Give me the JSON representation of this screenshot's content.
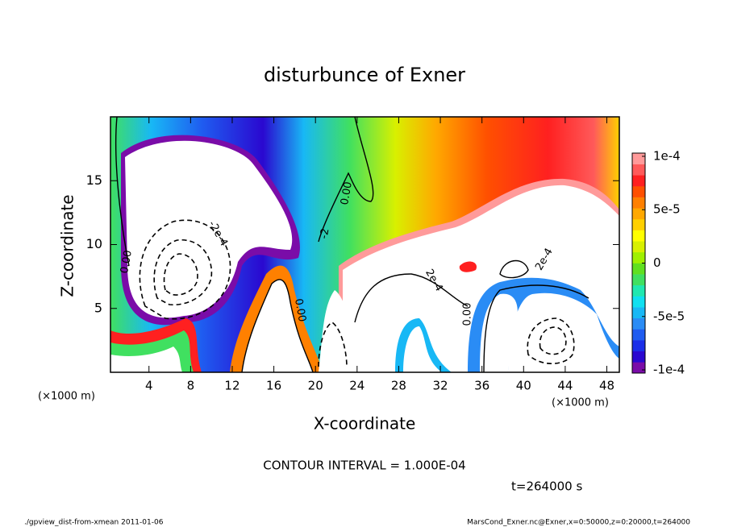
{
  "chart_data": {
    "type": "contour",
    "title": "disturbunce of Exner",
    "xlabel": "X-coordinate",
    "ylabel": "Z-coordinate",
    "x_unit": "(×1000 m)",
    "xlim": [
      0.3,
      49.2
    ],
    "xticks": [
      4,
      8,
      12,
      16,
      20,
      24,
      28,
      32,
      36,
      40,
      44,
      48
    ],
    "ylim": [
      0,
      20
    ],
    "yticks": [
      5,
      10,
      15
    ],
    "clim": [
      -0.000103,
      0.000103
    ],
    "cticks": [
      {
        "value": 0.0001,
        "label": "1e-4"
      },
      {
        "value": 5e-05,
        "label": "5e-5"
      },
      0,
      {
        "value": -5e-05,
        "label": "-5e-5"
      },
      {
        "value": -0.0001,
        "label": "-1e-4"
      }
    ],
    "colors": [
      "#7a0ca8",
      "#2a08d0",
      "#1a2ee8",
      "#1f5cf0",
      "#2a8cf5",
      "#18b8f5",
      "#10e0f0",
      "#20e8b0",
      "#40e060",
      "#60e020",
      "#a0f000",
      "#d8f000",
      "#ffff00",
      "#ffd000",
      "#ffa800",
      "#ff8000",
      "#ff5000",
      "#ff2020",
      "#ff5a5a",
      "#ff9a9a"
    ],
    "contour_labels": [
      "0.00",
      "-2e-4",
      "0.00",
      "-2",
      "0.00",
      "0.00",
      "2e-4",
      "2e-4"
    ],
    "contour_interval": "CONTOUR INTERVAL = 1.000E-04",
    "time": "t=264000 s",
    "footer_left": "./gpview_dist-from-xmean  2011-01-06",
    "footer_right": "MarsCond_Exner.nc@Exner,x=0:50000,z=0:20000,t=264000"
  }
}
